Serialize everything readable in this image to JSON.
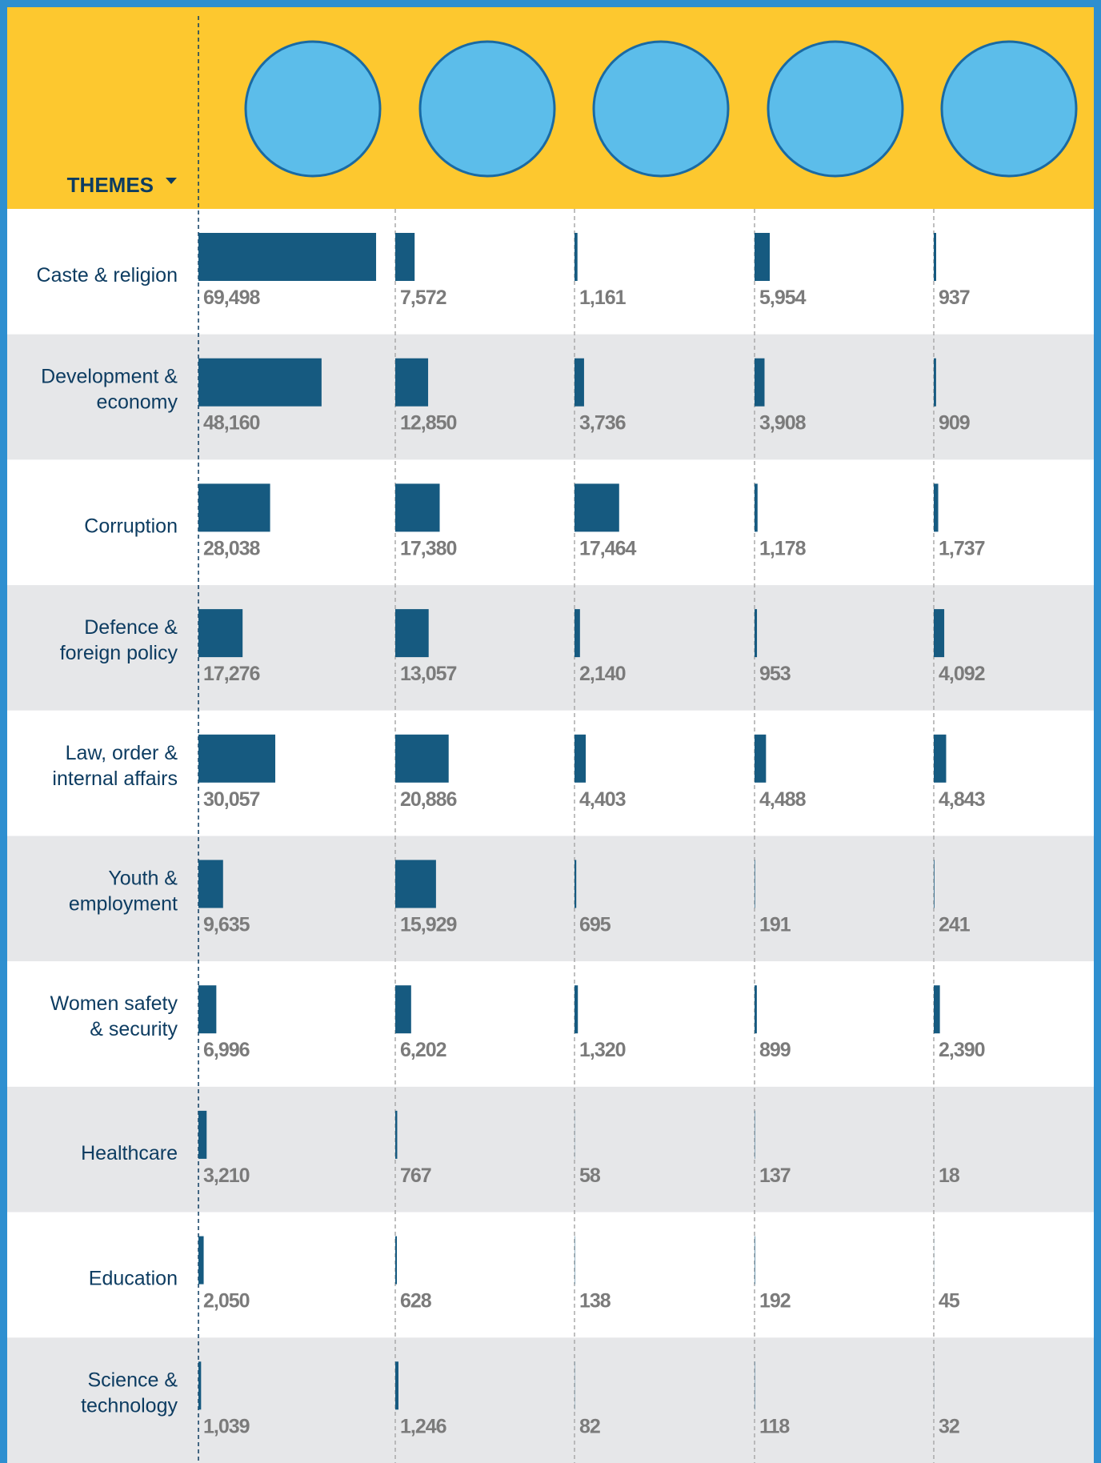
{
  "chart_data": {
    "type": "bar",
    "header_label": "THEMES",
    "categories": [
      [
        "Caste & religion"
      ],
      [
        "Development &",
        "economy"
      ],
      [
        "Corruption"
      ],
      [
        "Defence &",
        "foreign policy"
      ],
      [
        "Law, order &",
        "internal affairs"
      ],
      [
        "Youth &",
        "employment"
      ],
      [
        "Women safety",
        "& security"
      ],
      [
        "Healthcare"
      ],
      [
        "Education"
      ],
      [
        "Science &",
        "technology"
      ]
    ],
    "xlim": [
      0,
      77000
    ],
    "series": [
      {
        "color": "#165a80",
        "values": [
          69498,
          48160,
          28038,
          17276,
          30057,
          9635,
          6996,
          3210,
          2050,
          1039
        ],
        "value_labels": [
          "69,498",
          "48,160",
          "28,038",
          "17,276",
          "30,057",
          "9,635",
          "6,996",
          "3,210",
          "2,050",
          "1,039"
        ]
      },
      {
        "color": "#165a80",
        "values": [
          7572,
          12850,
          17380,
          13057,
          20886,
          15929,
          6202,
          767,
          628,
          1246
        ],
        "value_labels": [
          "7,572",
          "12,850",
          "17,380",
          "13,057",
          "20,886",
          "15,929",
          "6,202",
          "767",
          "628",
          "1,246"
        ]
      },
      {
        "color": "#165a80",
        "values": [
          1161,
          3736,
          17464,
          2140,
          4403,
          695,
          1320,
          58,
          138,
          82
        ],
        "value_labels": [
          "1,161",
          "3,736",
          "17,464",
          "2,140",
          "4,403",
          "695",
          "1,320",
          "58",
          "138",
          "82"
        ]
      },
      {
        "color": "#165a80",
        "values": [
          5954,
          3908,
          1178,
          953,
          4488,
          191,
          899,
          137,
          192,
          118
        ],
        "value_labels": [
          "5,954",
          "3,908",
          "1,178",
          "953",
          "4,488",
          "191",
          "899",
          "137",
          "192",
          "118"
        ]
      },
      {
        "color": "#165a80",
        "values": [
          937,
          909,
          1737,
          4092,
          4843,
          241,
          2390,
          18,
          45,
          32
        ],
        "value_labels": [
          "937",
          "909",
          "1,737",
          "4,092",
          "4,843",
          "241",
          "2,390",
          "18",
          "45",
          "32"
        ]
      }
    ]
  }
}
